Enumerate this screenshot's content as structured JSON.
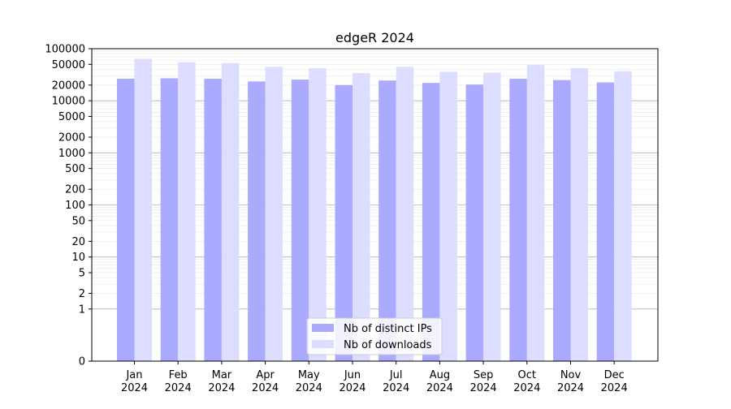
{
  "chart_data": {
    "type": "bar",
    "title": "edgeR 2024",
    "xlabel": "",
    "ylabel": "",
    "y_scale": "symlog",
    "ylim": [
      0,
      100000
    ],
    "y_ticks": [
      0,
      1,
      2,
      5,
      10,
      20,
      50,
      100,
      200,
      500,
      1000,
      2000,
      5000,
      10000,
      20000,
      50000,
      100000
    ],
    "categories": [
      [
        "Jan",
        "2024"
      ],
      [
        "Feb",
        "2024"
      ],
      [
        "Mar",
        "2024"
      ],
      [
        "Apr",
        "2024"
      ],
      [
        "May",
        "2024"
      ],
      [
        "Jun",
        "2024"
      ],
      [
        "Jul",
        "2024"
      ],
      [
        "Aug",
        "2024"
      ],
      [
        "Sep",
        "2024"
      ],
      [
        "Oct",
        "2024"
      ],
      [
        "Nov",
        "2024"
      ],
      [
        "Dec",
        "2024"
      ]
    ],
    "series": [
      {
        "name": "Nb of distinct IPs",
        "color": "#aaaaff",
        "values": [
          26500,
          27000,
          26500,
          23500,
          25500,
          20000,
          24500,
          22000,
          20500,
          26500,
          25000,
          22500
        ]
      },
      {
        "name": "Nb of downloads",
        "color": "#ddddff",
        "values": [
          64000,
          55000,
          53000,
          45000,
          42000,
          34000,
          45000,
          36000,
          34500,
          48500,
          42500,
          37000
        ]
      }
    ],
    "grid": true,
    "legend_position": "bottom-center"
  }
}
